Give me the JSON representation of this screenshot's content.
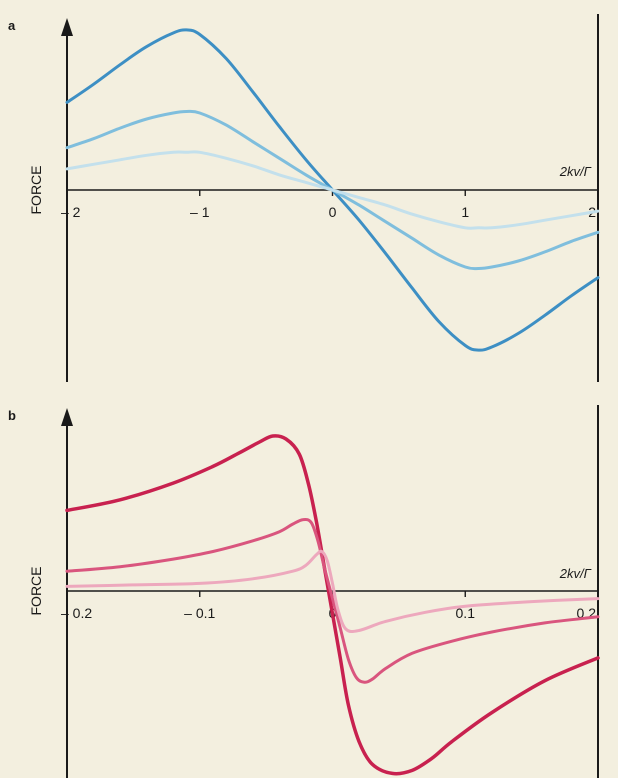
{
  "chart_data": [
    {
      "panel": "a",
      "type": "line",
      "ylabel": "FORCE",
      "xlabel": "2kv/Γ",
      "xlim": [
        -2,
        2
      ],
      "ylim": [
        -1.2,
        1.2
      ],
      "xticks": [
        {
          "value": -2,
          "label": "– 2"
        },
        {
          "value": -1,
          "label": "– 1"
        },
        {
          "value": 0,
          "label": "0"
        },
        {
          "value": 1,
          "label": "1"
        },
        {
          "value": 2,
          "label": "2"
        }
      ],
      "series": [
        {
          "color": "#3d8fc4",
          "width": 3,
          "x": [
            -2,
            -1.8,
            -1.6,
            -1.4,
            -1.2,
            -1.1,
            -1.0,
            -0.8,
            -0.6,
            -0.4,
            -0.2,
            0,
            0.2,
            0.4,
            0.6,
            0.8,
            1.0,
            1.1,
            1.2,
            1.4,
            1.6,
            1.8,
            2
          ],
          "y": [
            0.58,
            0.7,
            0.83,
            0.95,
            1.04,
            1.06,
            1.03,
            0.87,
            0.65,
            0.42,
            0.2,
            0,
            -0.2,
            -0.42,
            -0.65,
            -0.87,
            -1.03,
            -1.06,
            -1.04,
            -0.95,
            -0.83,
            -0.7,
            -0.58
          ]
        },
        {
          "color": "#7fbedd",
          "width": 3,
          "x": [
            -2,
            -1.8,
            -1.6,
            -1.4,
            -1.2,
            -1.1,
            -1.0,
            -0.8,
            -0.6,
            -0.4,
            -0.2,
            0,
            0.2,
            0.4,
            0.6,
            0.8,
            1.0,
            1.1,
            1.2,
            1.4,
            1.6,
            1.8,
            2
          ],
          "y": [
            0.28,
            0.34,
            0.41,
            0.47,
            0.51,
            0.52,
            0.51,
            0.43,
            0.32,
            0.21,
            0.1,
            0,
            -0.1,
            -0.21,
            -0.32,
            -0.43,
            -0.51,
            -0.52,
            -0.51,
            -0.47,
            -0.41,
            -0.34,
            -0.28
          ]
        },
        {
          "color": "#c3e0ec",
          "width": 3,
          "x": [
            -2,
            -1.8,
            -1.6,
            -1.4,
            -1.2,
            -1.1,
            -1.0,
            -0.8,
            -0.6,
            -0.4,
            -0.2,
            0,
            0.2,
            0.4,
            0.6,
            0.8,
            1.0,
            1.1,
            1.2,
            1.4,
            1.6,
            1.8,
            2
          ],
          "y": [
            0.14,
            0.17,
            0.2,
            0.23,
            0.25,
            0.25,
            0.25,
            0.21,
            0.16,
            0.1,
            0.05,
            0,
            -0.05,
            -0.1,
            -0.16,
            -0.21,
            -0.25,
            -0.25,
            -0.25,
            -0.23,
            -0.2,
            -0.17,
            -0.14
          ]
        }
      ]
    },
    {
      "panel": "b",
      "type": "line",
      "ylabel": "FORCE",
      "xlabel": "2kv/Γ",
      "xlim": [
        -0.2,
        0.2
      ],
      "ylim": [
        -1.2,
        1.2
      ],
      "xticks": [
        {
          "value": -0.2,
          "label": "– 0.2"
        },
        {
          "value": -0.1,
          "label": "– 0.1"
        },
        {
          "value": 0,
          "label": "0"
        },
        {
          "value": 0.1,
          "label": "0.1"
        },
        {
          "value": 0.2,
          "label": "0.2"
        }
      ],
      "series": [
        {
          "color": "#c8214f",
          "width": 3.5,
          "x": [
            -0.2,
            -0.16,
            -0.12,
            -0.09,
            -0.07,
            -0.055,
            -0.045,
            -0.035,
            -0.025,
            -0.018,
            -0.012,
            -0.006,
            0,
            0.006,
            0.012,
            0.02,
            0.03,
            0.045,
            0.06,
            0.075,
            0.09,
            0.12,
            0.16,
            0.2
          ],
          "y": [
            0.53,
            0.6,
            0.71,
            0.82,
            0.91,
            0.98,
            1.02,
            1.0,
            0.9,
            0.7,
            0.45,
            0.15,
            -0.15,
            -0.45,
            -0.75,
            -0.99,
            -1.14,
            -1.2,
            -1.18,
            -1.1,
            -0.99,
            -0.8,
            -0.59,
            -0.44
          ]
        },
        {
          "color": "#d9557e",
          "width": 3,
          "x": [
            -0.2,
            -0.16,
            -0.12,
            -0.09,
            -0.06,
            -0.04,
            -0.03,
            -0.022,
            -0.016,
            -0.011,
            -0.006,
            0,
            0.006,
            0.012,
            0.018,
            0.024,
            0.03,
            0.04,
            0.06,
            0.09,
            0.12,
            0.16,
            0.2
          ],
          "y": [
            0.13,
            0.16,
            0.21,
            0.26,
            0.33,
            0.39,
            0.44,
            0.47,
            0.45,
            0.33,
            0.15,
            -0.05,
            -0.25,
            -0.45,
            -0.57,
            -0.6,
            -0.58,
            -0.51,
            -0.41,
            -0.33,
            -0.27,
            -0.21,
            -0.17
          ]
        },
        {
          "color": "#eda8bd",
          "width": 3,
          "x": [
            -0.2,
            -0.15,
            -0.1,
            -0.06,
            -0.03,
            -0.02,
            -0.012,
            -0.008,
            -0.004,
            0,
            0.004,
            0.01,
            0.02,
            0.04,
            0.07,
            0.1,
            0.15,
            0.2
          ],
          "y": [
            0.03,
            0.04,
            0.05,
            0.08,
            0.13,
            0.17,
            0.24,
            0.26,
            0.2,
            0.05,
            -0.12,
            -0.25,
            -0.26,
            -0.2,
            -0.14,
            -0.1,
            -0.07,
            -0.05
          ]
        }
      ]
    }
  ]
}
